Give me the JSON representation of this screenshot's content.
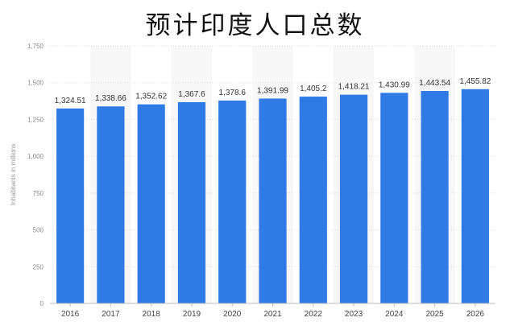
{
  "title": "预计印度人口总数",
  "chart_data": {
    "type": "bar",
    "title": "预计印度人口总数",
    "xlabel": "",
    "ylabel": "Inhabitants in millions",
    "categories": [
      "2016",
      "2017",
      "2018",
      "2019",
      "2020",
      "2021",
      "2022",
      "2023",
      "2024",
      "2025",
      "2026"
    ],
    "values": [
      1324.51,
      1338.66,
      1352.62,
      1367.6,
      1378.6,
      1391.99,
      1405.2,
      1418.21,
      1430.99,
      1443.54,
      1455.82
    ],
    "value_labels": [
      "1,324.51",
      "1,338.66",
      "1,352.62",
      "1,367.6",
      "1,378.6",
      "1,391.99",
      "1,405.2",
      "1,418.21",
      "1,430.99",
      "1,443.54",
      "1,455.82"
    ],
    "ylim": [
      0,
      1750
    ],
    "yticks": [
      0,
      250,
      500,
      750,
      1000,
      1250,
      1500,
      1750
    ],
    "ytick_labels": [
      "0",
      "250",
      "500",
      "750",
      "1,000",
      "1,250",
      "1,500",
      "1,750"
    ],
    "grid": true,
    "legend": "none",
    "colors": {
      "bar": "#2f7ae5",
      "grid": "#dddddd",
      "band": "#f7f7f7"
    }
  }
}
